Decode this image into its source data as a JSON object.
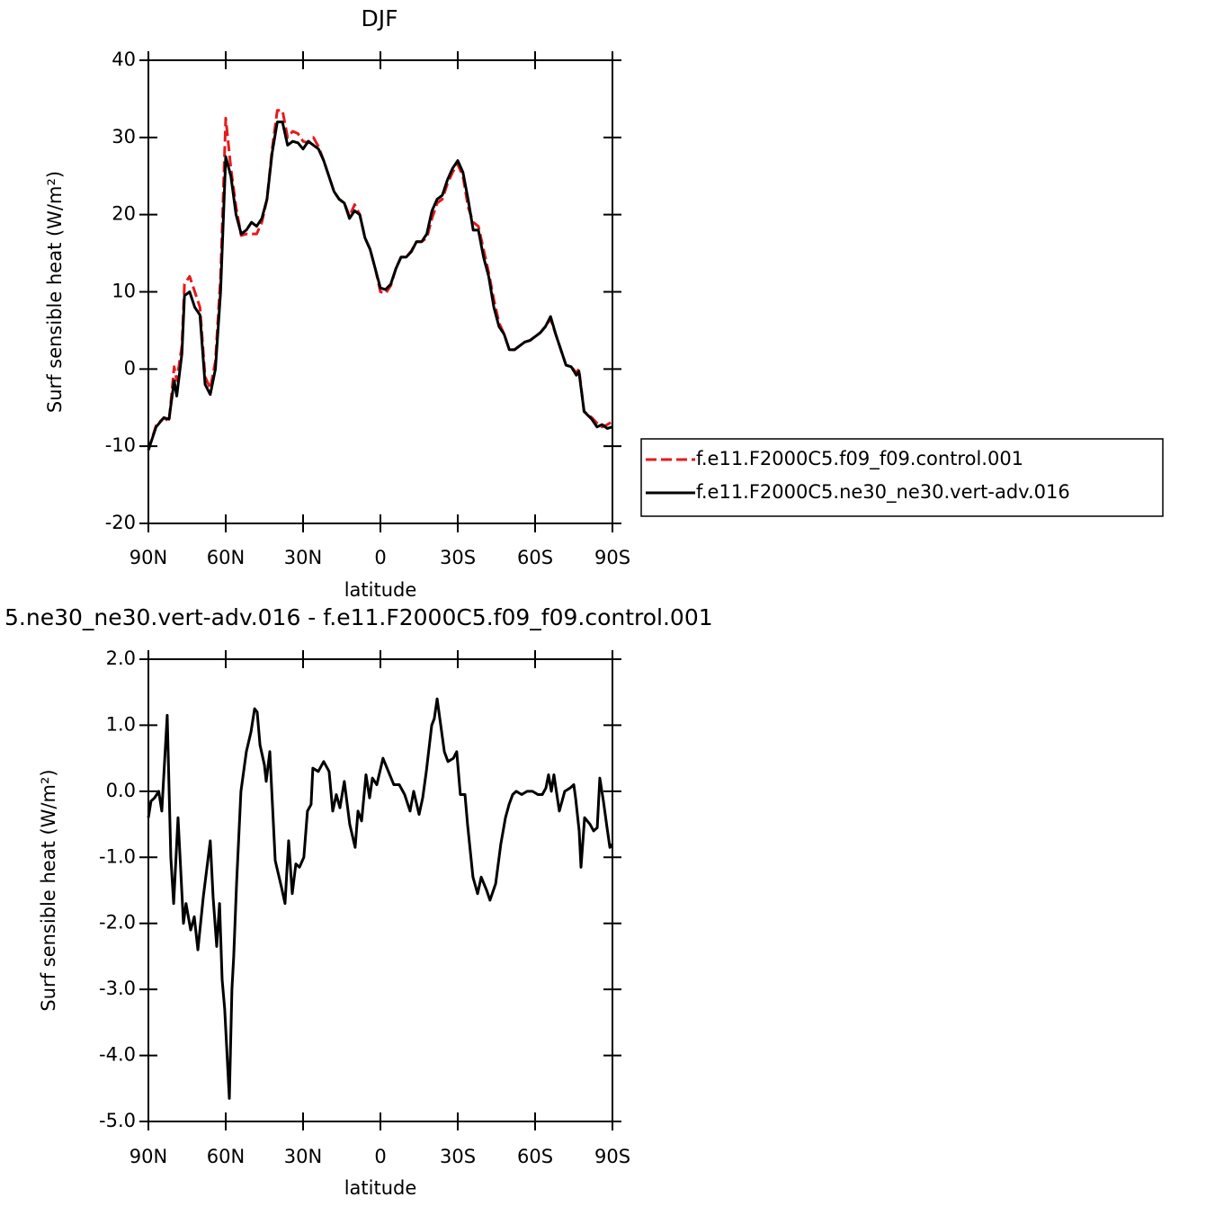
{
  "chart_data": [
    {
      "type": "line",
      "title": "DJF",
      "xlabel": "latitude",
      "ylabel": "Surf sensible heat (W/m²)",
      "x": [
        90,
        87,
        84,
        82,
        80,
        79,
        77,
        76,
        74,
        72,
        70,
        68,
        66,
        64,
        62,
        60,
        58,
        56,
        54,
        52,
        50,
        48,
        46,
        44,
        42,
        40,
        38,
        36,
        34,
        32,
        30,
        28,
        26,
        24,
        22,
        20,
        18,
        16,
        14,
        12,
        10,
        8,
        6,
        4,
        2,
        0,
        -2,
        -4,
        -6,
        -8,
        -10,
        -12,
        -14,
        -16,
        -18,
        -20,
        -22,
        -24,
        -26,
        -28,
        -30,
        -32,
        -34,
        -36,
        -38,
        -40,
        -42,
        -44,
        -46,
        -48,
        -50,
        -52,
        -54,
        -56,
        -58,
        -60,
        -62,
        -64,
        -66,
        -68,
        -70,
        -72,
        -74,
        -76,
        -77,
        -79,
        -82,
        -84,
        -86,
        -88,
        -90
      ],
      "series": [
        {
          "name": "f.e11.F2000C5.f09_f09.control.001",
          "color": "#e41a1c",
          "linestyle": "dashed",
          "values": [
            -10.5,
            -7.3,
            -6.3,
            -6.8,
            0.3,
            -1.5,
            3,
            11,
            12,
            10,
            8,
            -1,
            -2.5,
            1,
            12,
            32.5,
            26,
            21,
            17.3,
            17.5,
            17.5,
            17.5,
            19,
            22,
            28.5,
            33.5,
            33.5,
            30,
            30.8,
            30.5,
            29.5,
            29.3,
            30,
            28.8,
            27,
            25,
            23,
            22,
            21.5,
            19.8,
            21.3,
            20,
            17,
            15.5,
            13,
            10,
            9.8,
            10.8,
            13,
            14.5,
            14.5,
            15.3,
            16.5,
            16.5,
            17,
            19.5,
            21.5,
            22,
            24,
            25.5,
            26.5,
            25,
            21,
            19,
            18.5,
            15.5,
            12.5,
            9,
            6,
            4.5,
            2.5,
            2.5,
            3,
            3.5,
            3.7,
            4.2,
            4.7,
            5.5,
            6.5,
            4.5,
            2.5,
            0.5,
            0.3,
            -0.5,
            0,
            -5.5,
            -6.3,
            -7,
            -7.5,
            -7.2,
            -6.8
          ]
        },
        {
          "name": "f.e11.F2000C5.ne30_ne30.vert-adv.016",
          "color": "#000000",
          "linestyle": "solid",
          "values": [
            -10.5,
            -7.5,
            -6.3,
            -6.5,
            -1.5,
            -3.5,
            2,
            9.5,
            10,
            8,
            7,
            -2,
            -3.3,
            0,
            10,
            27.5,
            25,
            20,
            17.5,
            18,
            19,
            18.5,
            19.5,
            22,
            28,
            32,
            32,
            29,
            29.5,
            29.3,
            28.5,
            29.5,
            29,
            28.5,
            27,
            25,
            23,
            22,
            21.5,
            19.5,
            20.5,
            20,
            17,
            15.5,
            13,
            10.5,
            10.3,
            11,
            13,
            14.5,
            14.5,
            15.2,
            16.5,
            16.5,
            17.5,
            20.5,
            22,
            22.5,
            24.5,
            26,
            27,
            25.5,
            22,
            18,
            18,
            14.5,
            12,
            8,
            5.5,
            4.5,
            2.5,
            2.5,
            3,
            3.5,
            3.7,
            4.2,
            4.7,
            5.5,
            6.8,
            4.5,
            2.5,
            0.5,
            0.3,
            -0.8,
            -0.3,
            -5.5,
            -6.5,
            -7.5,
            -7.2,
            -7.7,
            -7.5
          ]
        }
      ],
      "xlim": [
        90,
        -90
      ],
      "xticks": [
        {
          "value": 90,
          "label": "90N"
        },
        {
          "value": 60,
          "label": "60N"
        },
        {
          "value": 30,
          "label": "30N"
        },
        0,
        {
          "value": -30,
          "label": "30S"
        },
        {
          "value": -60,
          "label": "60S"
        },
        {
          "value": -90,
          "label": "90S"
        }
      ],
      "ylim": [
        -20,
        40
      ],
      "yticks": [
        -20,
        -10,
        0,
        10,
        20,
        30,
        40
      ],
      "legend": "right"
    },
    {
      "type": "line",
      "title": "5.ne30_ne30.vert-adv.016 - f.e11.F2000C5.f09_f09.control.001",
      "xlabel": "latitude",
      "ylabel": "Surf sensible heat (W/m²)",
      "x": [
        90,
        89,
        87.6,
        86,
        84.8,
        82.7,
        81.3,
        80.2,
        78.5,
        76.4,
        75.4,
        73.6,
        72.2,
        70.8,
        68.7,
        66,
        64.9,
        63.5,
        62.4,
        61.4,
        60.4,
        58.6,
        57.6,
        56.9,
        55.8,
        54.1,
        52,
        50.2,
        48.8,
        47.8,
        46.7,
        45,
        44.3,
        42.9,
        40.8,
        38.4,
        37,
        35.6,
        34.2,
        32.8,
        31.4,
        29.7,
        28.3,
        26.9,
        26.2,
        24.1,
        22,
        19.9,
        18.5,
        17.1,
        15.7,
        14,
        11.9,
        9.8,
        8.7,
        7.3,
        5.6,
        4.2,
        3.1,
        1.4,
        -1,
        -3.1,
        -5.2,
        -7.3,
        -9.4,
        -11.5,
        -12.9,
        -15,
        -16.4,
        -17.8,
        -19.9,
        -20.9,
        -22,
        -23.4,
        -24.8,
        -26.2,
        -28.3,
        -29.6,
        -31,
        -32.8,
        -33.8,
        -35.9,
        -37.7,
        -39.1,
        -41.2,
        -42.5,
        -44.7,
        -46.7,
        -48.5,
        -49.9,
        -51.3,
        -52.7,
        -54.8,
        -56.9,
        -59,
        -61.1,
        -62.8,
        -64.2,
        -65.2,
        -66.3,
        -67.3,
        -69.4,
        -71.5,
        -73.6,
        -75,
        -75.7,
        -77.1,
        -77.8,
        -79.2,
        -81.3,
        -82.7,
        -84.1,
        -85.1,
        -86.5,
        -87.9,
        -89,
        -90
      ],
      "series": [
        {
          "color": "#000000",
          "linestyle": "solid",
          "values": [
            -0.4,
            -0.15,
            -0.1,
            0,
            -0.3,
            1.15,
            -1.0,
            -1.7,
            -0.4,
            -2.0,
            -1.7,
            -2.1,
            -1.9,
            -2.4,
            -1.6,
            -0.75,
            -1.6,
            -2.35,
            -1.7,
            -2.85,
            -3.3,
            -4.65,
            -3.0,
            -2.5,
            -1.4,
            0.0,
            0.6,
            0.9,
            1.25,
            1.2,
            0.7,
            0.4,
            0.15,
            0.6,
            -1.05,
            -1.45,
            -1.7,
            -0.75,
            -1.55,
            -1.1,
            -1.15,
            -1.0,
            -0.3,
            -0.2,
            0.35,
            0.3,
            0.45,
            0.3,
            -0.3,
            -0.05,
            -0.25,
            0.15,
            -0.5,
            -0.85,
            -0.3,
            -0.45,
            0.25,
            -0.1,
            0.2,
            0.1,
            0.5,
            0.3,
            0.1,
            0.1,
            -0.05,
            -0.3,
            0.0,
            -0.35,
            -0.1,
            0.3,
            1.0,
            1.1,
            1.4,
            1.0,
            0.6,
            0.45,
            0.5,
            0.6,
            -0.05,
            -0.05,
            -0.5,
            -1.3,
            -1.55,
            -1.3,
            -1.5,
            -1.65,
            -1.4,
            -0.8,
            -0.4,
            -0.2,
            -0.05,
            0.0,
            -0.05,
            0.0,
            0.0,
            -0.05,
            -0.05,
            0.05,
            0.25,
            0.0,
            0.25,
            -0.3,
            0.0,
            0.05,
            0.1,
            -0.1,
            -0.6,
            -1.15,
            -0.4,
            -0.5,
            -0.6,
            -0.55,
            0.2,
            -0.15,
            -0.55,
            -0.85,
            -0.8
          ]
        }
      ],
      "xlim": [
        90,
        -90
      ],
      "xticks": [
        {
          "value": 90,
          "label": "90N"
        },
        {
          "value": 60,
          "label": "60N"
        },
        {
          "value": 30,
          "label": "30N"
        },
        0,
        {
          "value": -30,
          "label": "30S"
        },
        {
          "value": -60,
          "label": "60S"
        },
        {
          "value": -90,
          "label": "90S"
        }
      ],
      "ylim": [
        -5,
        2
      ],
      "yticks": [
        {
          "value": -5,
          "label": "-5.0"
        },
        {
          "value": -4,
          "label": "-4.0"
        },
        {
          "value": -3,
          "label": "-3.0"
        },
        {
          "value": -2,
          "label": "-2.0"
        },
        {
          "value": -1,
          "label": "-1.0"
        },
        {
          "value": 0,
          "label": "0.0"
        },
        {
          "value": 1,
          "label": "1.0"
        },
        {
          "value": 2,
          "label": "2.0"
        }
      ]
    }
  ]
}
